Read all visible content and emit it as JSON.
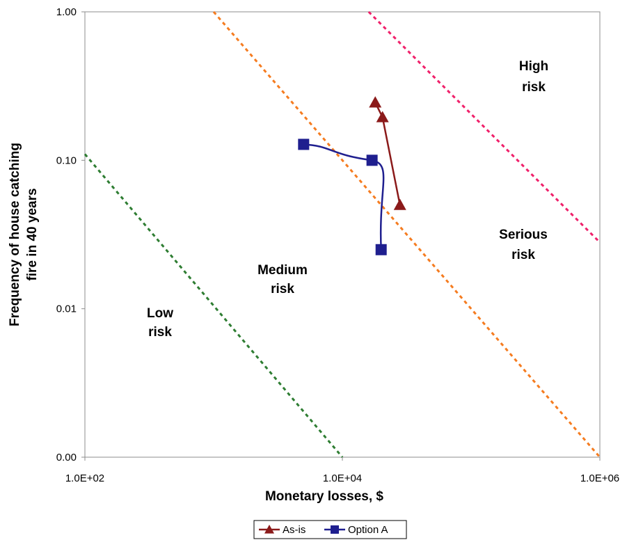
{
  "chart_data": {
    "type": "line",
    "xlabel": "Monetary losses, $",
    "ylabel_lines": [
      "Frequency of house catching",
      "fire in 40 years"
    ],
    "x_scale": "log",
    "y_scale": "log",
    "xlim": [
      100,
      1000000
    ],
    "ylim": [
      0.001,
      1
    ],
    "x_ticks": [
      {
        "value": 100,
        "label": "1.0E+02"
      },
      {
        "value": 10000,
        "label": "1.0E+04"
      },
      {
        "value": 1000000,
        "label": "1.0E+06"
      }
    ],
    "y_ticks": [
      {
        "value": 1,
        "label": "1.00"
      },
      {
        "value": 0.1,
        "label": "0.10"
      },
      {
        "value": 0.01,
        "label": "0.01"
      },
      {
        "value": 0.001,
        "label": "0.00"
      }
    ],
    "grid": false,
    "legend_position": "bottom",
    "series": [
      {
        "name": "As-is",
        "color": "#8B1A1A",
        "marker": "triangle",
        "x": [
          18000,
          20500,
          28000
        ],
        "y": [
          0.245,
          0.195,
          0.05
        ]
      },
      {
        "name": "Option A",
        "color": "#1F1F8F",
        "marker": "square",
        "x": [
          5000,
          17000,
          20000
        ],
        "y": [
          0.128,
          0.1,
          0.025
        ]
      }
    ],
    "boundaries": [
      {
        "color": "#2E7D32",
        "from": [
          100,
          0.11
        ],
        "to": [
          10000,
          0.001
        ]
      },
      {
        "color": "#F57C20",
        "from": [
          1000,
          1
        ],
        "to": [
          1000000,
          0.001
        ]
      },
      {
        "color": "#F0206A",
        "from": [
          16000,
          1
        ],
        "to": [
          1000000,
          0.028
        ]
      }
    ],
    "zone_labels": [
      {
        "lines": [
          "Low",
          "risk"
        ],
        "color": "#2E7D32"
      },
      {
        "lines": [
          "Medium",
          "risk"
        ],
        "color": "#F5A623"
      },
      {
        "lines": [
          "Serious",
          "risk"
        ],
        "color": "#F57C20"
      },
      {
        "lines": [
          "High",
          "risk"
        ],
        "color": "#E8202A"
      }
    ]
  }
}
